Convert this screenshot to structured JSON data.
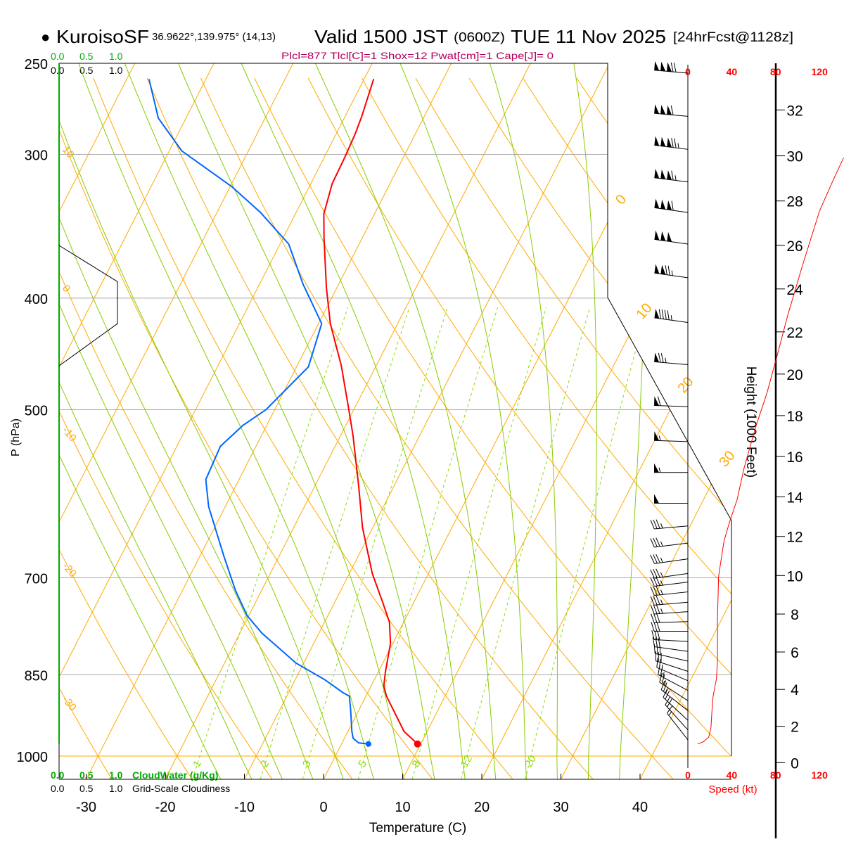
{
  "header": {
    "bullet": "●",
    "station": "KuroisoSF",
    "coords": "36.9622°,139.975° (14,13)",
    "valid": "Valid 1500 JST",
    "utc": "(0600Z)",
    "date": "TUE 11 Nov 2025",
    "forecast": "[24hrFcst@1128z]",
    "indices": "Plcl=877 Tlcl[C]=1 Shox=12 Pwat[cm]=1 Cape[J]= 0"
  },
  "legend": {
    "cloudwater_ticks": [
      "0.0",
      "0.5",
      "1.0"
    ],
    "cloudwater_label": "CloudWater (g/Kg)",
    "cloudiness_ticks": [
      "0.0",
      "0.5",
      "1.0"
    ],
    "cloudiness_label": "Grid-Scale Cloudiness"
  },
  "colors": {
    "temperature": "#ff0000",
    "dewpoint": "#0066ff",
    "isotherm": "#ffaa00",
    "moist_adiabat": "#88cc00",
    "mixing_ratio": "#88dd00",
    "cloudwater": "#00aa00",
    "speed": "#ff0000",
    "indices": "#b0005a",
    "isobar": "#aaaaaa"
  },
  "chart_data": {
    "type": "line",
    "subtype": "skew-t log-p",
    "xlabel": "Temperature (C)",
    "ylabel": "P (hPa)",
    "right_label": "Height (1000 Feet)",
    "speed_label": "Speed (kt)",
    "x_ticks": [
      "-30",
      "-20",
      "-10",
      "0",
      "10",
      "20",
      "30",
      "40"
    ],
    "pressure_ticks": [
      "250",
      "300",
      "400",
      "500",
      "700",
      "850",
      "1000"
    ],
    "height_ticks": [
      "0",
      "2",
      "4",
      "6",
      "8",
      "10",
      "12",
      "14",
      "16",
      "18",
      "20",
      "22",
      "24",
      "26",
      "28",
      "30",
      "32"
    ],
    "speed_ticks": [
      "0",
      "40",
      "80",
      "120"
    ],
    "dry_adiabat_labels": [
      "10",
      "0",
      "-10",
      "-20",
      "-30"
    ],
    "isotherm_labels": [
      "0",
      "10",
      "20",
      "30"
    ],
    "mixing_ratio_labels": [
      "1",
      "2",
      "3",
      "5",
      "8",
      "12",
      "20"
    ],
    "temperature": [
      [
        976,
        9.6
      ],
      [
        952,
        7.1
      ],
      [
        887,
        2.6
      ],
      [
        869,
        1.6
      ],
      [
        845,
        0.9
      ],
      [
        798,
        -0.3
      ],
      [
        765,
        -1.8
      ],
      [
        737,
        -3.8
      ],
      [
        694,
        -7.1
      ],
      [
        633,
        -11.3
      ],
      [
        582,
        -14.5
      ],
      [
        527,
        -18.4
      ],
      [
        498,
        -20.8
      ],
      [
        458,
        -24.4
      ],
      [
        421,
        -28.5
      ],
      [
        392,
        -31.3
      ],
      [
        355,
        -34.8
      ],
      [
        338,
        -36.4
      ],
      [
        318,
        -37.3
      ],
      [
        302,
        -37.4
      ],
      [
        288,
        -37.6
      ],
      [
        278,
        -37.9
      ],
      [
        258,
        -38.8
      ]
    ],
    "dewpoint": [
      [
        976,
        3.4
      ],
      [
        974,
        2.1
      ],
      [
        965,
        1.1
      ],
      [
        952,
        0.5
      ],
      [
        913,
        -1.0
      ],
      [
        887,
        -2.1
      ],
      [
        881,
        -3.1
      ],
      [
        858,
        -6.3
      ],
      [
        830,
        -11.0
      ],
      [
        804,
        -14.3
      ],
      [
        782,
        -17.2
      ],
      [
        755,
        -20.2
      ],
      [
        718,
        -23.3
      ],
      [
        670,
        -27.0
      ],
      [
        607,
        -32.1
      ],
      [
        575,
        -34.2
      ],
      [
        538,
        -34.5
      ],
      [
        516,
        -33.0
      ],
      [
        500,
        -31.1
      ],
      [
        459,
        -28.5
      ],
      [
        421,
        -29.6
      ],
      [
        389,
        -34.5
      ],
      [
        359,
        -38.9
      ],
      [
        337,
        -44.5
      ],
      [
        320,
        -49.8
      ],
      [
        298,
        -58.4
      ],
      [
        279,
        -63.5
      ],
      [
        258,
        -67.2
      ]
    ],
    "cloudiness": [
      [
        360,
        0.0
      ],
      [
        387,
        1.0
      ],
      [
        421,
        1.0
      ],
      [
        458,
        0.0
      ]
    ],
    "wind_speed_profile": [
      [
        976,
        9
      ],
      [
        972,
        14
      ],
      [
        963,
        19
      ],
      [
        945,
        21
      ],
      [
        913,
        22
      ],
      [
        887,
        23
      ],
      [
        857,
        26
      ],
      [
        827,
        27
      ],
      [
        760,
        27
      ],
      [
        698,
        28
      ],
      [
        678,
        30
      ],
      [
        650,
        33
      ],
      [
        626,
        38
      ],
      [
        598,
        45
      ],
      [
        563,
        51
      ],
      [
        517,
        62
      ],
      [
        484,
        72
      ],
      [
        450,
        81
      ],
      [
        414,
        91
      ],
      [
        376,
        104
      ],
      [
        336,
        120
      ],
      [
        315,
        133
      ],
      [
        302,
        142
      ]
    ],
    "winds": [
      {
        "p": 255,
        "dir": 275,
        "kt": 170
      },
      {
        "p": 278,
        "dir": 275,
        "kt": 160
      },
      {
        "p": 297,
        "dir": 277,
        "kt": 175
      },
      {
        "p": 317,
        "dir": 277,
        "kt": 165
      },
      {
        "p": 337,
        "dir": 278,
        "kt": 160
      },
      {
        "p": 359,
        "dir": 278,
        "kt": 150
      },
      {
        "p": 384,
        "dir": 278,
        "kt": 125
      },
      {
        "p": 420,
        "dir": 278,
        "kt": 95
      },
      {
        "p": 457,
        "dir": 275,
        "kt": 75
      },
      {
        "p": 497,
        "dir": 272,
        "kt": 60
      },
      {
        "p": 533,
        "dir": 272,
        "kt": 55
      },
      {
        "p": 567,
        "dir": 270,
        "kt": 55
      },
      {
        "p": 603,
        "dir": 270,
        "kt": 50
      },
      {
        "p": 631,
        "dir": 265,
        "kt": 35
      },
      {
        "p": 653,
        "dir": 263,
        "kt": 35
      },
      {
        "p": 674,
        "dir": 262,
        "kt": 35
      },
      {
        "p": 694,
        "dir": 262,
        "kt": 35
      },
      {
        "p": 706,
        "dir": 263,
        "kt": 35
      },
      {
        "p": 720,
        "dir": 264,
        "kt": 35
      },
      {
        "p": 735,
        "dir": 265,
        "kt": 35
      },
      {
        "p": 749,
        "dir": 266,
        "kt": 35
      },
      {
        "p": 764,
        "dir": 268,
        "kt": 30
      },
      {
        "p": 779,
        "dir": 270,
        "kt": 30
      },
      {
        "p": 795,
        "dir": 273,
        "kt": 30
      },
      {
        "p": 811,
        "dir": 278,
        "kt": 30
      },
      {
        "p": 827,
        "dir": 283,
        "kt": 30
      },
      {
        "p": 844,
        "dir": 288,
        "kt": 30
      },
      {
        "p": 860,
        "dir": 293,
        "kt": 25
      },
      {
        "p": 877,
        "dir": 298,
        "kt": 25
      },
      {
        "p": 895,
        "dir": 303,
        "kt": 25
      },
      {
        "p": 913,
        "dir": 308,
        "kt": 25
      },
      {
        "p": 931,
        "dir": 313,
        "kt": 20
      },
      {
        "p": 949,
        "dir": 318,
        "kt": 20
      },
      {
        "p": 968,
        "dir": 322,
        "kt": 15
      }
    ],
    "surface_point": {
      "p": 976,
      "t": 9.6,
      "td": 3.4
    },
    "ylim": [
      1047,
      250
    ],
    "xlim_at_bottom": [
      -33.5,
      36
    ]
  }
}
